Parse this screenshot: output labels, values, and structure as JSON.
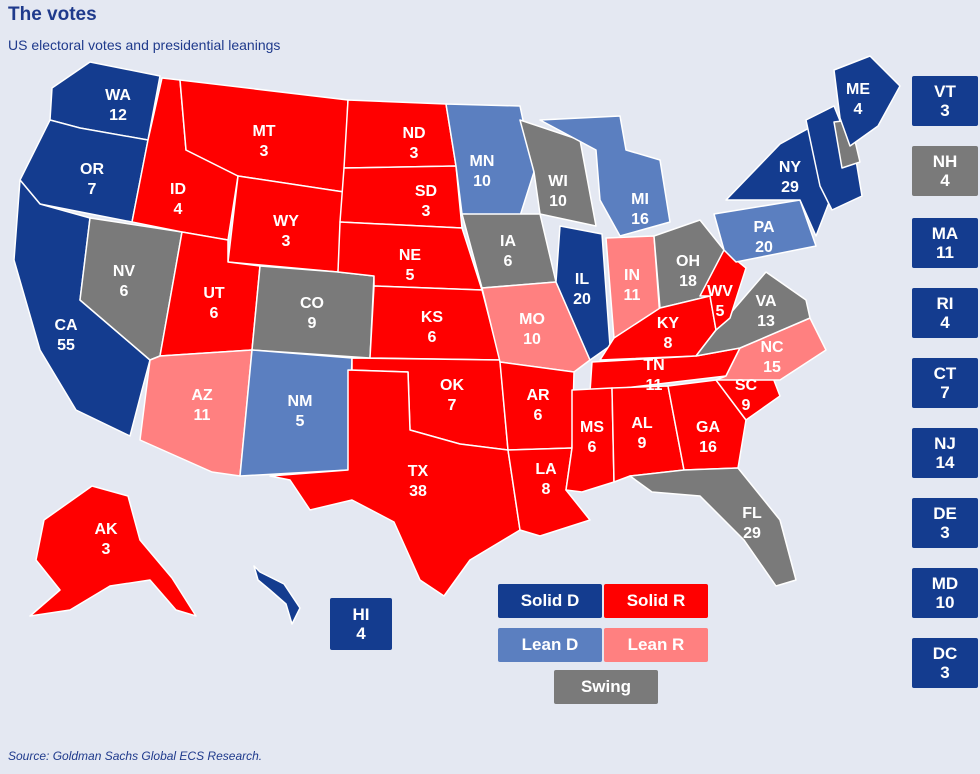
{
  "header": {
    "title": "The votes",
    "subtitle": "US electoral votes and presidential leanings"
  },
  "source": "Source: Goldman Sachs Global ECS Research.",
  "colors": {
    "solid_d": "#143c8f",
    "lean_d": "#5b7fc0",
    "solid_r": "#ff0000",
    "lean_r": "#ff8080",
    "swing": "#7a7a7a"
  },
  "legend": [
    {
      "key": "solid_d",
      "label": "Solid D"
    },
    {
      "key": "solid_r",
      "label": "Solid R"
    },
    {
      "key": "lean_d",
      "label": "Lean D"
    },
    {
      "key": "lean_r",
      "label": "Lean R"
    },
    {
      "key": "swing",
      "label": "Swing"
    }
  ],
  "states": [
    {
      "abbr": "WA",
      "votes": "12",
      "lean": "solid_d"
    },
    {
      "abbr": "OR",
      "votes": "7",
      "lean": "solid_d"
    },
    {
      "abbr": "CA",
      "votes": "55",
      "lean": "solid_d"
    },
    {
      "abbr": "NV",
      "votes": "6",
      "lean": "swing"
    },
    {
      "abbr": "ID",
      "votes": "4",
      "lean": "solid_r"
    },
    {
      "abbr": "MT",
      "votes": "3",
      "lean": "solid_r"
    },
    {
      "abbr": "WY",
      "votes": "3",
      "lean": "solid_r"
    },
    {
      "abbr": "UT",
      "votes": "6",
      "lean": "solid_r"
    },
    {
      "abbr": "AZ",
      "votes": "11",
      "lean": "lean_r"
    },
    {
      "abbr": "CO",
      "votes": "9",
      "lean": "swing"
    },
    {
      "abbr": "NM",
      "votes": "5",
      "lean": "lean_d"
    },
    {
      "abbr": "ND",
      "votes": "3",
      "lean": "solid_r"
    },
    {
      "abbr": "SD",
      "votes": "3",
      "lean": "solid_r"
    },
    {
      "abbr": "NE",
      "votes": "5",
      "lean": "solid_r"
    },
    {
      "abbr": "KS",
      "votes": "6",
      "lean": "solid_r"
    },
    {
      "abbr": "OK",
      "votes": "7",
      "lean": "solid_r"
    },
    {
      "abbr": "TX",
      "votes": "38",
      "lean": "solid_r"
    },
    {
      "abbr": "MN",
      "votes": "10",
      "lean": "lean_d"
    },
    {
      "abbr": "IA",
      "votes": "6",
      "lean": "swing"
    },
    {
      "abbr": "MO",
      "votes": "10",
      "lean": "lean_r"
    },
    {
      "abbr": "AR",
      "votes": "6",
      "lean": "solid_r"
    },
    {
      "abbr": "LA",
      "votes": "8",
      "lean": "solid_r"
    },
    {
      "abbr": "WI",
      "votes": "10",
      "lean": "swing"
    },
    {
      "abbr": "IL",
      "votes": "20",
      "lean": "solid_d"
    },
    {
      "abbr": "MI",
      "votes": "16",
      "lean": "lean_d"
    },
    {
      "abbr": "IN",
      "votes": "11",
      "lean": "lean_r"
    },
    {
      "abbr": "OH",
      "votes": "18",
      "lean": "swing"
    },
    {
      "abbr": "KY",
      "votes": "8",
      "lean": "solid_r"
    },
    {
      "abbr": "TN",
      "votes": "11",
      "lean": "solid_r"
    },
    {
      "abbr": "MS",
      "votes": "6",
      "lean": "solid_r"
    },
    {
      "abbr": "AL",
      "votes": "9",
      "lean": "solid_r"
    },
    {
      "abbr": "GA",
      "votes": "16",
      "lean": "solid_r"
    },
    {
      "abbr": "FL",
      "votes": "29",
      "lean": "swing"
    },
    {
      "abbr": "SC",
      "votes": "9",
      "lean": "solid_r"
    },
    {
      "abbr": "NC",
      "votes": "15",
      "lean": "lean_r"
    },
    {
      "abbr": "VA",
      "votes": "13",
      "lean": "swing"
    },
    {
      "abbr": "WV",
      "votes": "5",
      "lean": "solid_r"
    },
    {
      "abbr": "PA",
      "votes": "20",
      "lean": "lean_d"
    },
    {
      "abbr": "NY",
      "votes": "29",
      "lean": "solid_d"
    },
    {
      "abbr": "ME",
      "votes": "4",
      "lean": "solid_d"
    },
    {
      "abbr": "AK",
      "votes": "3",
      "lean": "solid_r"
    },
    {
      "abbr": "HI",
      "votes": "4",
      "lean": "solid_d"
    }
  ],
  "side_boxes": [
    {
      "abbr": "VT",
      "votes": "3",
      "lean": "solid_d"
    },
    {
      "abbr": "NH",
      "votes": "4",
      "lean": "swing"
    },
    {
      "abbr": "MA",
      "votes": "11",
      "lean": "solid_d"
    },
    {
      "abbr": "RI",
      "votes": "4",
      "lean": "solid_d"
    },
    {
      "abbr": "CT",
      "votes": "7",
      "lean": "solid_d"
    },
    {
      "abbr": "NJ",
      "votes": "14",
      "lean": "solid_d"
    },
    {
      "abbr": "DE",
      "votes": "3",
      "lean": "solid_d"
    },
    {
      "abbr": "MD",
      "votes": "10",
      "lean": "solid_d"
    },
    {
      "abbr": "DC",
      "votes": "3",
      "lean": "solid_d"
    }
  ]
}
